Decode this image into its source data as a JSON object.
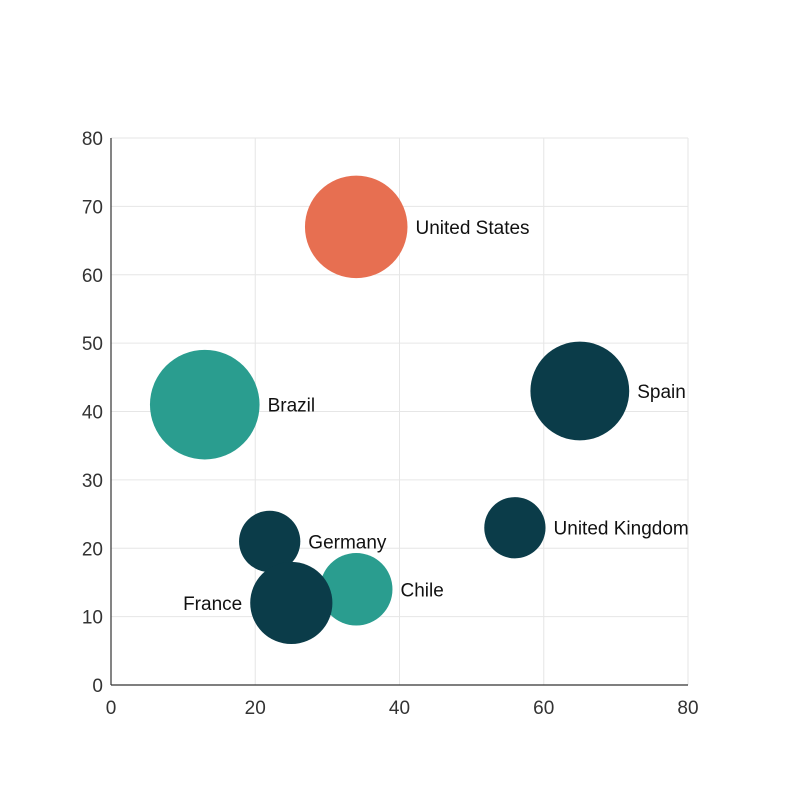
{
  "chart_data": {
    "type": "scatter",
    "variant": "bubble",
    "title": "",
    "xlabel": "",
    "ylabel": "",
    "xlim": [
      0,
      80
    ],
    "ylim": [
      0,
      80
    ],
    "x_ticks": [
      0,
      20,
      40,
      60,
      80
    ],
    "y_ticks": [
      0,
      10,
      20,
      30,
      40,
      50,
      60,
      70,
      80
    ],
    "grid": true,
    "legend": "none",
    "colors": {
      "dark": "#0b3c49",
      "teal": "#2a9d8f",
      "orange": "#e76f51"
    },
    "points": [
      {
        "label": "United States",
        "x": 34,
        "y": 67,
        "size": 14,
        "color": "#e76f51",
        "label_side": "right"
      },
      {
        "label": "Brazil",
        "x": 13,
        "y": 41,
        "size": 16,
        "color": "#2a9d8f",
        "label_side": "right"
      },
      {
        "label": "Spain",
        "x": 65,
        "y": 43,
        "size": 13,
        "color": "#0b3c49",
        "label_side": "right"
      },
      {
        "label": "United Kingdom",
        "x": 56,
        "y": 23,
        "size": 5,
        "color": "#0b3c49",
        "label_side": "right"
      },
      {
        "label": "Germany",
        "x": 22,
        "y": 21,
        "size": 5,
        "color": "#0b3c49",
        "label_side": "right"
      },
      {
        "label": "Chile",
        "x": 34,
        "y": 14,
        "size": 7,
        "color": "#2a9d8f",
        "label_side": "right"
      },
      {
        "label": "France",
        "x": 25,
        "y": 12,
        "size": 9,
        "color": "#0b3c49",
        "label_side": "left"
      }
    ]
  }
}
